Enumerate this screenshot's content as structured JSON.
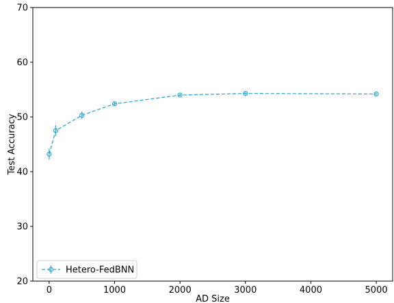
{
  "chart_data": {
    "type": "line",
    "title": "",
    "xlabel": "AD Size",
    "ylabel": "Test Accuracy",
    "xlim": [
      -250,
      5250
    ],
    "ylim": [
      20,
      70
    ],
    "xticks": [
      0,
      1000,
      2000,
      3000,
      4000,
      5000
    ],
    "yticks": [
      20,
      30,
      40,
      50,
      60,
      70
    ],
    "grid": false,
    "legend_position": "lower-left",
    "series": [
      {
        "name": "Hetero-FedBNN",
        "color": "#2ea8dc",
        "line_style": "dashed",
        "marker": "open-circle",
        "x": [
          0,
          100,
          500,
          1000,
          2000,
          3000,
          5000
        ],
        "y": [
          43.2,
          47.5,
          50.3,
          52.4,
          54.0,
          54.3,
          54.2
        ],
        "yerr": [
          1.0,
          1.0,
          0.7,
          0.4,
          0.2,
          0.2,
          0.2
        ]
      }
    ]
  }
}
